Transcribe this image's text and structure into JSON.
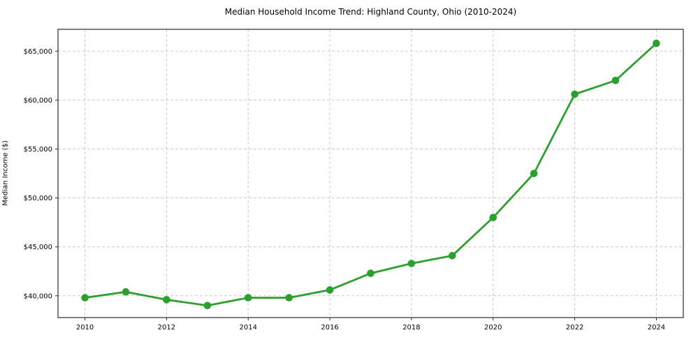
{
  "figure": {
    "background_color": "#ffffff"
  },
  "chart_data": {
    "type": "line",
    "title": "Median Household Income Trend: Highland County, Ohio (2010-2024)",
    "xlabel": "",
    "ylabel": "Median Income ($)",
    "x": [
      2010,
      2011,
      2012,
      2013,
      2014,
      2015,
      2016,
      2017,
      2018,
      2019,
      2020,
      2021,
      2022,
      2023,
      2024
    ],
    "series": [
      {
        "name": "Median Household Income",
        "values": [
          39800,
          40400,
          39600,
          39000,
          39800,
          39800,
          40600,
          42300,
          43300,
          44100,
          48000,
          52500,
          60600,
          62000,
          65800
        ]
      }
    ],
    "xlim": [
      2009.34,
      2024.66
    ],
    "ylim": [
      37775,
      67230
    ],
    "x_ticks": {
      "values": [
        2010,
        2012,
        2014,
        2016,
        2018,
        2020,
        2022,
        2024
      ],
      "labels": [
        "2010",
        "2012",
        "2014",
        "2016",
        "2018",
        "2020",
        "2022",
        "2024"
      ]
    },
    "y_ticks": {
      "values": [
        40000,
        45000,
        50000,
        55000,
        60000,
        65000
      ],
      "labels": [
        "$40,000",
        "$45,000",
        "$50,000",
        "$55,000",
        "$60,000",
        "$65,000"
      ]
    },
    "grid": "on",
    "grid_line_style": "dashed",
    "legend_position": "none",
    "line_color": "#2ca02c",
    "marker_color": "#2ca02c",
    "grid_color": "#c9c9c9",
    "spine_color": "#2a2a2a",
    "tick_label_color": "#000000"
  }
}
